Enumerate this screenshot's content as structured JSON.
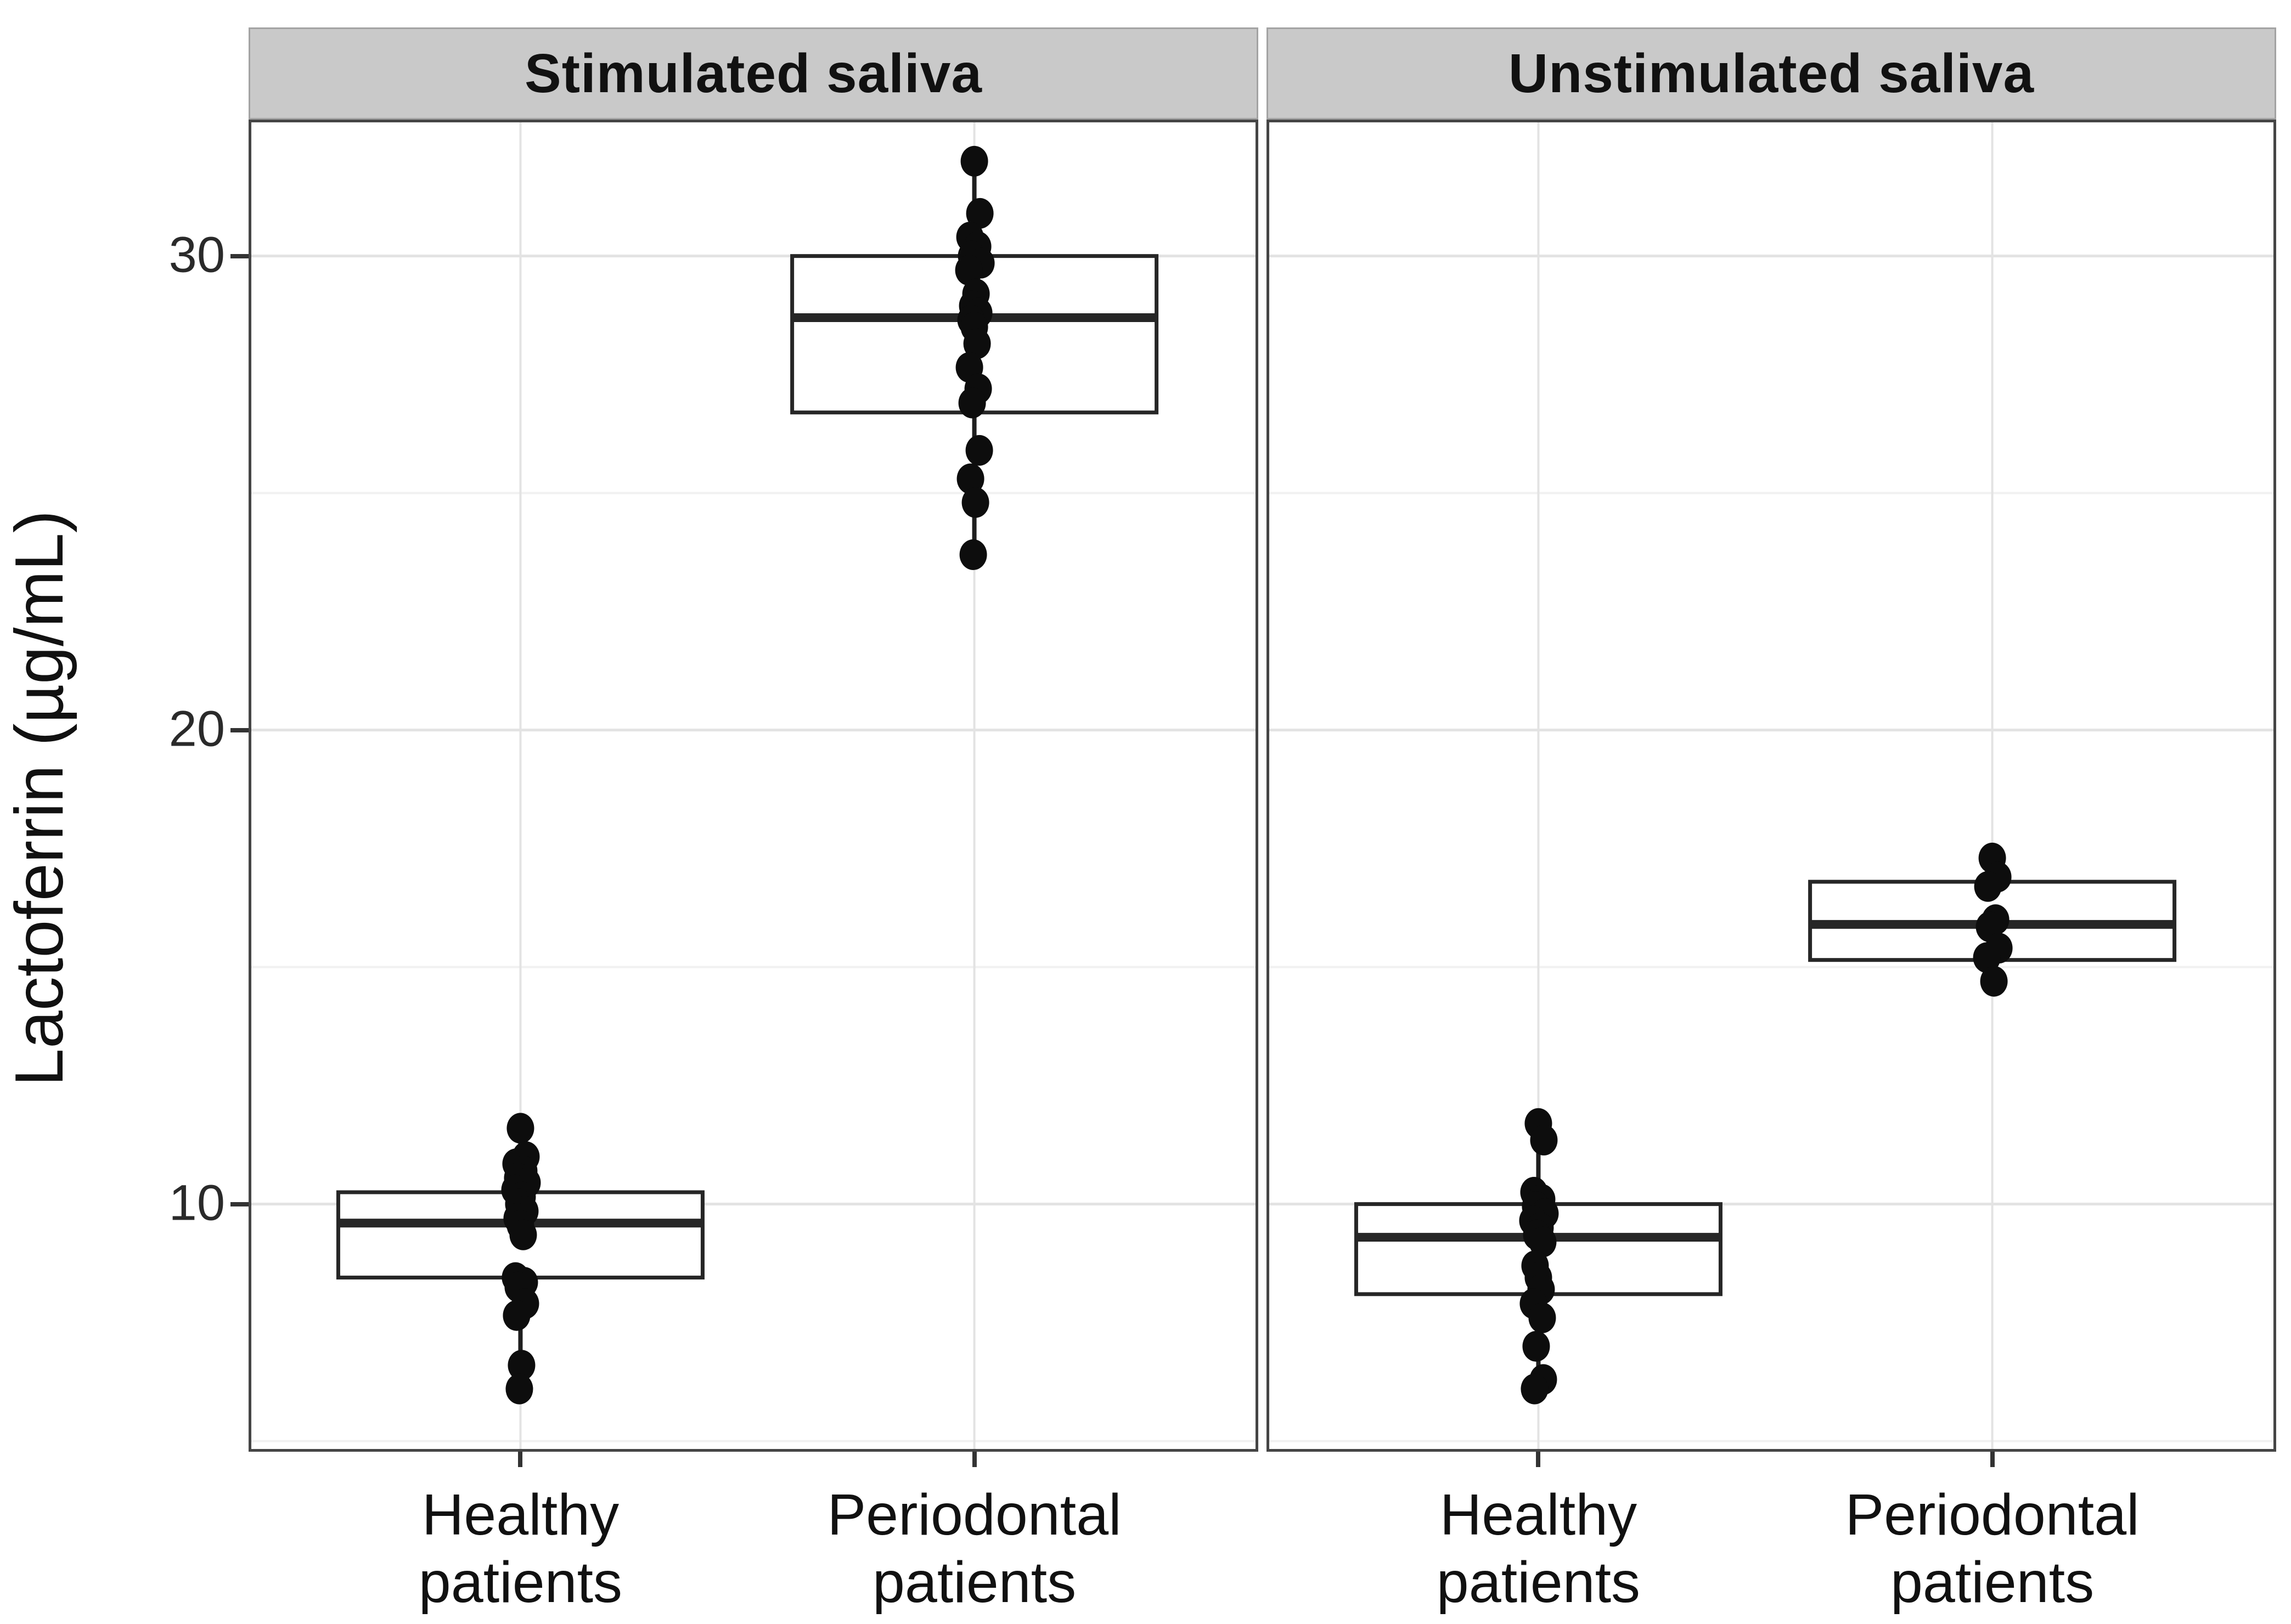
{
  "chart_data": {
    "type": "boxplot",
    "title": "",
    "xlabel": "",
    "ylabel": "Lactoferrin (µg/mL)",
    "y_tick_labels": [
      "30",
      "20",
      "10"
    ],
    "y_major_ticks": [
      30,
      20,
      10
    ],
    "y_minor_gridlines": [
      5,
      15,
      25
    ],
    "ylim": [
      4.8,
      32.8
    ],
    "legend": "none",
    "grid": "on",
    "facets": [
      {
        "label": "Stimulated saliva",
        "groups": [
          {
            "category": "Healthy patients",
            "category_lines": [
              "Healthy",
              "patients"
            ],
            "stats": {
              "whisker_low": 6.1,
              "q1": 8.45,
              "median": 9.6,
              "q3": 10.25,
              "whisker_high": 11.6
            },
            "points": [
              11.6,
              11.0,
              10.85,
              10.7,
              10.55,
              10.45,
              10.3,
              10.15,
              10.0,
              9.85,
              9.7,
              9.55,
              9.35,
              8.45,
              8.35,
              8.25,
              7.9,
              7.65,
              6.6,
              6.1
            ]
          },
          {
            "category": "Periodontal patients",
            "category_lines": [
              "Periodontal",
              "patients"
            ],
            "stats": {
              "whisker_low": 23.7,
              "q1": 26.7,
              "median": 28.7,
              "q3": 30.0,
              "whisker_high": 32.0
            },
            "points": [
              32.0,
              30.9,
              30.4,
              30.2,
              30.0,
              29.85,
              29.7,
              29.2,
              28.95,
              28.8,
              28.65,
              28.5,
              28.15,
              27.65,
              27.2,
              26.9,
              25.9,
              25.3,
              24.8,
              23.7
            ]
          }
        ]
      },
      {
        "label": "Unstimulated saliva",
        "groups": [
          {
            "category": "Healthy patients",
            "category_lines": [
              "Healthy",
              "patients"
            ],
            "stats": {
              "whisker_low": 6.1,
              "q1": 8.1,
              "median": 9.3,
              "q3": 10.0,
              "whisker_high": 11.35
            },
            "points": [
              11.7,
              11.35,
              10.25,
              10.1,
              9.95,
              9.8,
              9.65,
              9.5,
              9.35,
              9.2,
              8.7,
              8.45,
              8.2,
              7.9,
              7.6,
              7.0,
              6.3,
              6.1
            ]
          },
          {
            "category": "Periodontal patients",
            "category_lines": [
              "Periodontal",
              "patients"
            ],
            "stats": {
              "whisker_low": 14.7,
              "q1": 15.15,
              "median": 15.9,
              "q3": 16.8,
              "whisker_high": 17.3
            },
            "points": [
              17.3,
              16.9,
              16.7,
              16.0,
              15.85,
              15.4,
              15.2,
              14.7
            ]
          }
        ]
      }
    ],
    "colors": {
      "strip_bg": "#c9c9c9",
      "panel_border": "#454545",
      "box_stroke": "#262626",
      "box_fill": "#ffffff",
      "whisker": "#1f1f1f",
      "point": "#0d0d0d",
      "grid_major": "#e3e3e3",
      "grid_minor": "#f1f1f1",
      "text": "#1a1a1a"
    }
  }
}
